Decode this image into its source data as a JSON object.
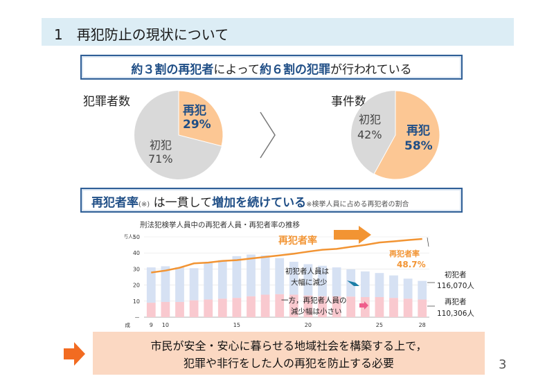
{
  "title": "1　再犯防止の現状について",
  "headline1": {
    "p1": "約３割の再犯者",
    "p2": "によって",
    "p3": "約６割の犯罪",
    "p4": "が行われている"
  },
  "pie_left": {
    "heading": "犯罪者数",
    "repeat_label": "再犯",
    "repeat_value": "29%",
    "first_label": "初犯",
    "first_value": "71%",
    "repeat_fraction": 0.29
  },
  "pie_right": {
    "heading": "事件数",
    "repeat_label": "再犯",
    "repeat_value": "58%",
    "first_label": "初犯",
    "first_value": "42%",
    "repeat_fraction": 0.58
  },
  "headline2": {
    "p1": "再犯者率",
    "p2": "(※)",
    "p3": " は一貫して",
    "p4": "増加を続けている",
    "p5": "※検挙人員に占める再犯者の割合"
  },
  "chart_data": {
    "type": "bar",
    "title": "刑法犯検挙人員中の再犯者人員・再犯者率の推移",
    "y_unit": "（万人）",
    "y_ticks": [
      "50",
      "40",
      "30",
      "20",
      "10",
      "－"
    ],
    "ylim": [
      0,
      50
    ],
    "x_prefix": "平成",
    "x_ticks": [
      {
        "label": "9",
        "year": 9
      },
      {
        "label": "10",
        "year": 10
      },
      {
        "label": "15",
        "year": 15
      },
      {
        "label": "20",
        "year": 20
      },
      {
        "label": "25",
        "year": 25
      },
      {
        "label": "28",
        "year": 28
      }
    ],
    "years": [
      9,
      10,
      11,
      12,
      13,
      14,
      15,
      16,
      17,
      18,
      19,
      20,
      21,
      22,
      23,
      24,
      25,
      26,
      27,
      28
    ],
    "series": [
      {
        "name": "初犯者",
        "values": [
          22.0,
          22.2,
          21.5,
          20.0,
          23.0,
          24.0,
          26.0,
          26.0,
          24.5,
          22.5,
          20.5,
          19.5,
          19.0,
          18.0,
          17.0,
          16.0,
          15.0,
          14.0,
          12.5,
          11.6
        ]
      },
      {
        "name": "再犯者",
        "values": [
          9.0,
          9.5,
          9.5,
          10.5,
          11.0,
          11.5,
          12.0,
          13.0,
          14.0,
          14.3,
          14.0,
          13.5,
          13.0,
          13.0,
          12.8,
          12.5,
          12.5,
          12.0,
          11.5,
          11.0
        ]
      }
    ],
    "rate": {
      "name": "再犯者率",
      "values": [
        27.8,
        29.0,
        30.8,
        33.5,
        34.0,
        35.0,
        35.5,
        36.5,
        37.5,
        38.5,
        39.5,
        40.8,
        42.0,
        42.5,
        43.8,
        45.0,
        46.5,
        47.2,
        48.0,
        48.7
      ]
    },
    "annotations": {
      "rate_label": "再犯者率",
      "rate_end_label": "再犯者率",
      "rate_end_value": "48.7%",
      "first_note_1": "初犯者人員は",
      "first_note_2": "大幅に減少",
      "repeat_note_1": "一方，再犯者人員の",
      "repeat_note_2": "減少幅は小さい",
      "first_end_label": "初犯者",
      "first_end_value": "116,070人",
      "repeat_end_label": "再犯者",
      "repeat_end_value": "110,306人"
    }
  },
  "bottom": {
    "line1": "市民が安全・安心に暮らせる地域社会を構築する上で，",
    "line2": "犯罪や非行をした人の再犯を防止する必要"
  },
  "page_number": "3",
  "colors": {
    "accent_orange": "#f29433",
    "navy": "#1f4e86",
    "first_bar": "#d6e1f3",
    "repeat_bar": "#f9c9cf",
    "pie_repeat": "#fcc794",
    "pie_first": "#d9d9d9"
  }
}
